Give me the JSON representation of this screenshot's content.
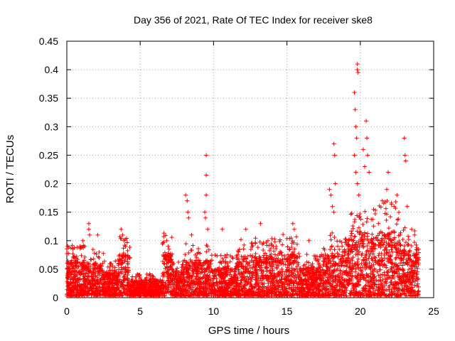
{
  "chart_data": {
    "type": "scatter",
    "title": "Day 356 of 2021, Rate Of TEC Index for receiver ske8",
    "xlabel": "GPS time / hours",
    "ylabel": "ROTI / TECUs",
    "xlim": [
      0,
      25
    ],
    "ylim": [
      0,
      0.45
    ],
    "x_ticks": [
      0,
      5,
      10,
      15,
      20,
      25
    ],
    "x_tick_labels": [
      "0",
      "5",
      "10",
      "15",
      "20",
      "25"
    ],
    "y_ticks": [
      0,
      0.05,
      0.1,
      0.15,
      0.2,
      0.25,
      0.3,
      0.35,
      0.4,
      0.45
    ],
    "y_tick_labels": [
      "0",
      "0.05",
      "0.1",
      "0.15",
      "0.2",
      "0.25",
      "0.3",
      "0.35",
      "0.4",
      "0.45"
    ],
    "grid": true,
    "marker": "+",
    "color": "#ff0000",
    "series": [
      {
        "name": "ROTI",
        "note": "dense cloud of small values (mostly 0.005-0.06) over 0-24 h; notable outliers listed below",
        "points": [
          [
            0.1,
            0.04
          ],
          [
            0.2,
            0.05
          ],
          [
            0.3,
            0.06
          ],
          [
            0.5,
            0.07
          ],
          [
            0.9,
            0.09
          ],
          [
            1.1,
            0.1
          ],
          [
            1.5,
            0.13
          ],
          [
            1.5,
            0.12
          ],
          [
            1.55,
            0.11
          ],
          [
            2.1,
            0.11
          ],
          [
            2.2,
            0.08
          ],
          [
            2.2,
            0.07
          ],
          [
            3.7,
            0.12
          ],
          [
            3.8,
            0.11
          ],
          [
            3.9,
            0.1
          ],
          [
            4.0,
            0.09
          ],
          [
            6.8,
            0.1
          ],
          [
            6.9,
            0.09
          ],
          [
            8.1,
            0.18
          ],
          [
            8.2,
            0.17
          ],
          [
            8.25,
            0.15
          ],
          [
            8.3,
            0.14
          ],
          [
            8.5,
            0.11
          ],
          [
            9.5,
            0.25
          ],
          [
            9.5,
            0.215
          ],
          [
            9.5,
            0.18
          ],
          [
            9.4,
            0.15
          ],
          [
            9.45,
            0.14
          ],
          [
            9.6,
            0.12
          ],
          [
            10.6,
            0.12
          ],
          [
            12.2,
            0.12
          ],
          [
            13.2,
            0.13
          ],
          [
            15.4,
            0.13
          ],
          [
            15.5,
            0.12
          ],
          [
            16.5,
            0.1
          ],
          [
            17.9,
            0.19
          ],
          [
            18.0,
            0.18
          ],
          [
            18.1,
            0.16
          ],
          [
            18.2,
            0.15
          ],
          [
            18.2,
            0.27
          ],
          [
            18.25,
            0.25
          ],
          [
            18.3,
            0.2
          ],
          [
            19.6,
            0.36
          ],
          [
            19.65,
            0.33
          ],
          [
            19.7,
            0.3
          ],
          [
            19.75,
            0.28
          ],
          [
            19.6,
            0.25
          ],
          [
            19.7,
            0.22
          ],
          [
            19.8,
            0.41
          ],
          [
            19.8,
            0.4
          ],
          [
            19.85,
            0.395
          ],
          [
            19.8,
            0.2
          ],
          [
            19.9,
            0.18
          ],
          [
            20.2,
            0.26
          ],
          [
            20.3,
            0.23
          ],
          [
            20.4,
            0.31
          ],
          [
            20.45,
            0.28
          ],
          [
            20.5,
            0.25
          ],
          [
            20.6,
            0.22
          ],
          [
            21.5,
            0.17
          ],
          [
            21.8,
            0.19
          ],
          [
            21.9,
            0.22
          ],
          [
            22.3,
            0.16
          ],
          [
            22.5,
            0.18
          ],
          [
            23.0,
            0.28
          ],
          [
            23.05,
            0.25
          ],
          [
            23.1,
            0.24
          ],
          [
            23.2,
            0.16
          ],
          [
            23.5,
            0.12
          ],
          [
            23.7,
            0.11
          ]
        ]
      }
    ]
  }
}
